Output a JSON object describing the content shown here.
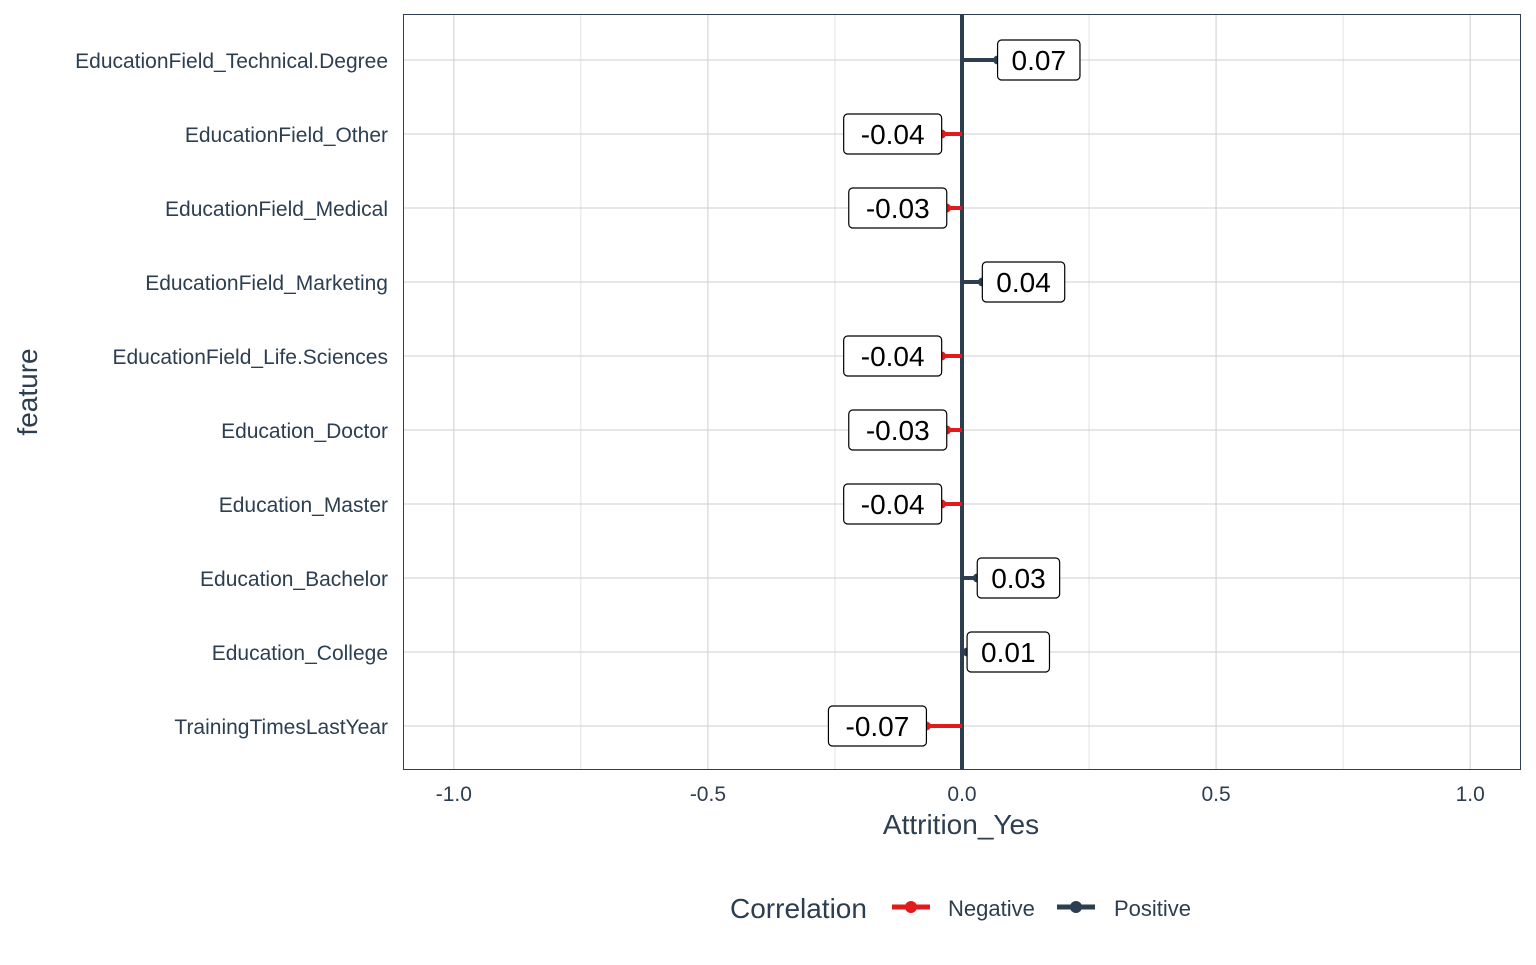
{
  "chart_data": {
    "type": "lollipop",
    "title": "",
    "xlabel": "Attrition_Yes",
    "ylabel": "feature",
    "xlim": [
      -1.1,
      1.1
    ],
    "x_ticks": [
      -1.0,
      -0.5,
      0.0,
      0.5,
      1.0
    ],
    "x_tick_labels": [
      "-1.0",
      "-0.5",
      "0.0",
      "0.5",
      "1.0"
    ],
    "grid": true,
    "legend_position": "bottom",
    "legend_title": "Correlation",
    "categories": [
      "EducationField_Technical.Degree",
      "EducationField_Other",
      "EducationField_Medical",
      "EducationField_Marketing",
      "EducationField_Life.Sciences",
      "Education_Doctor",
      "Education_Master",
      "Education_Bachelor",
      "Education_College",
      "TrainingTimesLastYear"
    ],
    "values": [
      0.07,
      -0.04,
      -0.03,
      0.04,
      -0.04,
      -0.03,
      -0.04,
      0.03,
      0.01,
      -0.07
    ],
    "value_labels": [
      "0.07",
      "-0.04",
      "-0.03",
      "0.04",
      "-0.04",
      "-0.03",
      "-0.04",
      "0.03",
      "0.01",
      "-0.07"
    ],
    "series": [
      {
        "name": "Negative",
        "color": "#e31a1c"
      },
      {
        "name": "Positive",
        "color": "#2c3e50"
      }
    ]
  }
}
